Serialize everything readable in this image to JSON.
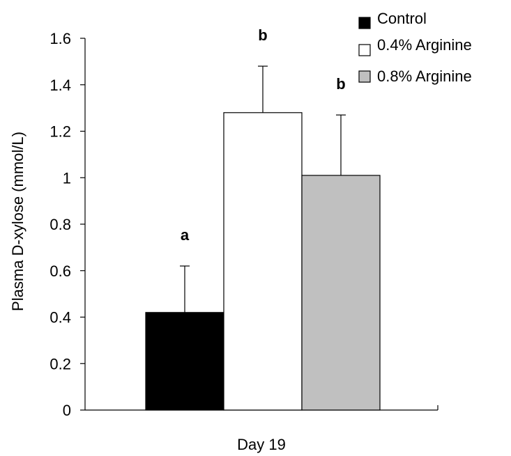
{
  "chart_data": {
    "type": "bar",
    "categories": [
      "Day 19"
    ],
    "series": [
      {
        "name": "Control",
        "values": [
          0.42
        ],
        "errors": [
          0.2
        ],
        "color": "#000000",
        "significance": "a"
      },
      {
        "name": "0.4% Arginine",
        "values": [
          1.28
        ],
        "errors": [
          0.2
        ],
        "color": "#ffffff",
        "significance": "b"
      },
      {
        "name": "0.8% Arginine",
        "values": [
          1.01
        ],
        "errors": [
          0.26
        ],
        "color": "#c0c0c0",
        "significance": "b"
      }
    ],
    "xlabel": "Day 19",
    "ylabel": "Plasma D-xylose (mmol/L)",
    "ylim": [
      0,
      1.6
    ],
    "yticks": [
      "0",
      "0.2",
      "0.4",
      "0.6",
      "0.8",
      "1",
      "1.2",
      "1.4",
      "1.6"
    ],
    "grid": false,
    "legend_position": "top-right"
  }
}
